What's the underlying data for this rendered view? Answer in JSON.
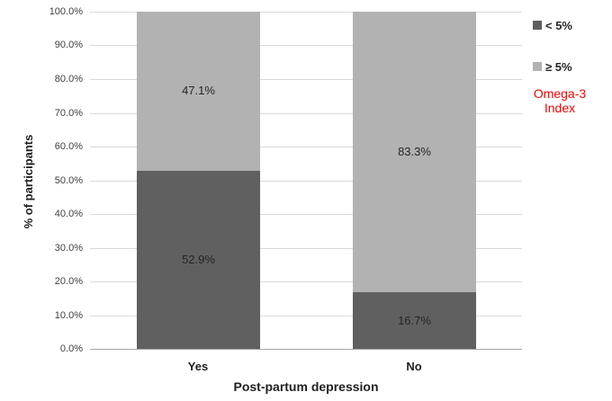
{
  "chart_data": {
    "type": "bar",
    "stacked": true,
    "title": "",
    "xlabel": "Post-partum depression",
    "ylabel": "% of participants",
    "categories": [
      "Yes",
      "No"
    ],
    "series": [
      {
        "name": "< 5%",
        "color": "#606060",
        "values": [
          52.9,
          16.7
        ],
        "labels": [
          "52.9%",
          "16.7%"
        ]
      },
      {
        "name": "≥ 5%",
        "color": "#b2b2b2",
        "values": [
          47.1,
          83.3
        ],
        "labels": [
          "47.1%",
          "83.3%"
        ]
      }
    ],
    "ylim": [
      0,
      100
    ],
    "ytick_step": 10,
    "ytick_labels": [
      "0.0%",
      "10.0%",
      "20.0%",
      "30.0%",
      "40.0%",
      "50.0%",
      "60.0%",
      "70.0%",
      "80.0%",
      "90.0%",
      "100.0%"
    ],
    "grid": true,
    "gridline_color": "#d9d9d9",
    "axis_line_color": "#a6a6a6",
    "legend_position": "right",
    "legend_note": "Omega-3 Index",
    "legend_note_color": "#ff0000",
    "background_color": "#ffffff"
  }
}
